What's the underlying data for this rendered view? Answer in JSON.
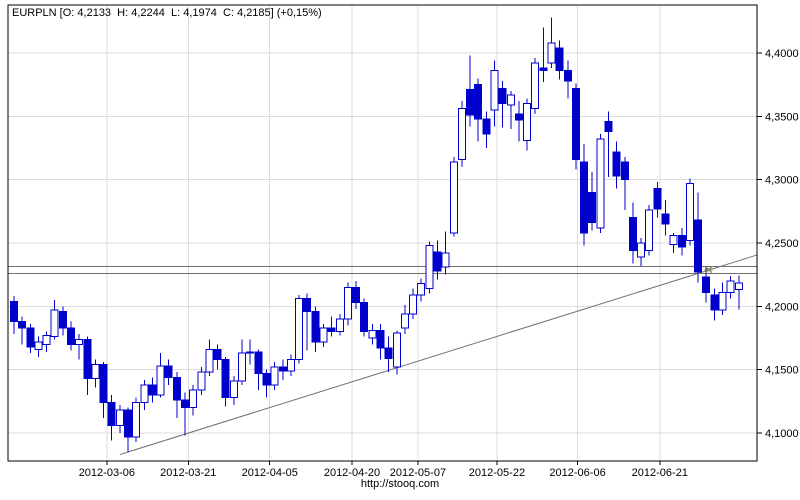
{
  "header": {
    "symbol": "EURPLN",
    "open": "4,2133",
    "high": "4,2244",
    "low": "4,1974",
    "close": "4,2185",
    "change": "(+0,15%)",
    "quote_line": "EURPLN [O: 4,2133  H: 4,2244  L: 4,1974  C: 4,2185] (+0,15%)"
  },
  "footer": {
    "url": "http://stooq.com"
  },
  "chart_data": {
    "type": "candlestick",
    "title": "EURPLN daily candlestick chart",
    "symbol": "EURPLN",
    "grid": true,
    "legend": null,
    "y_axis": {
      "side": "right",
      "min": 4.0779,
      "max": 4.4379,
      "ticks": [
        {
          "value": 4.4,
          "label": "4,4000"
        },
        {
          "value": 4.35,
          "label": "4,3500"
        },
        {
          "value": 4.3,
          "label": "4,3000"
        },
        {
          "value": 4.25,
          "label": "4,2500"
        },
        {
          "value": 4.2,
          "label": "4,2000"
        },
        {
          "value": 4.15,
          "label": "4,1500"
        },
        {
          "value": 4.1,
          "label": "4,1000"
        }
      ]
    },
    "x_axis": {
      "ticks": [
        {
          "index": 11.4,
          "label": "2012-03-06"
        },
        {
          "index": 21.4,
          "label": "2012-03-21"
        },
        {
          "index": 31.4,
          "label": "2012-04-05"
        },
        {
          "index": 41.5,
          "label": "2012-04-20"
        },
        {
          "index": 49.6,
          "label": "2012-05-07"
        },
        {
          "index": 59.3,
          "label": "2012-05-22"
        },
        {
          "index": 69.2,
          "label": "2012-06-06"
        },
        {
          "index": 79.3,
          "label": "2012-06-21"
        }
      ]
    },
    "last_quote": {
      "open": 4.2133,
      "high": 4.2244,
      "low": 4.1974,
      "close": 4.2185,
      "change_pct": 0.15
    },
    "candles": [
      [
        4.204,
        4.208,
        4.178,
        4.188
      ],
      [
        4.188,
        4.192,
        4.17,
        4.183
      ],
      [
        4.183,
        4.186,
        4.163,
        4.168
      ],
      [
        4.166,
        4.176,
        4.16,
        4.172
      ],
      [
        4.17,
        4.18,
        4.164,
        4.177
      ],
      [
        4.176,
        4.205,
        4.174,
        4.197
      ],
      [
        4.196,
        4.2,
        4.177,
        4.183
      ],
      [
        4.183,
        4.188,
        4.165,
        4.17
      ],
      [
        4.17,
        4.178,
        4.158,
        4.174
      ],
      [
        4.174,
        4.176,
        4.13,
        4.143
      ],
      [
        4.143,
        4.158,
        4.136,
        4.154
      ],
      [
        4.154,
        4.156,
        4.112,
        4.124
      ],
      [
        4.124,
        4.13,
        4.094,
        4.106
      ],
      [
        4.106,
        4.122,
        4.1,
        4.118
      ],
      [
        4.118,
        4.12,
        4.085,
        4.097
      ],
      [
        4.097,
        4.128,
        4.093,
        4.124
      ],
      [
        4.124,
        4.142,
        4.118,
        4.138
      ],
      [
        4.138,
        4.144,
        4.124,
        4.13
      ],
      [
        4.13,
        4.163,
        4.128,
        4.153
      ],
      [
        4.153,
        4.158,
        4.138,
        4.144
      ],
      [
        4.144,
        4.148,
        4.112,
        4.126
      ],
      [
        4.126,
        4.132,
        4.098,
        4.12
      ],
      [
        4.12,
        4.138,
        4.114,
        4.134
      ],
      [
        4.134,
        4.152,
        4.13,
        4.148
      ],
      [
        4.148,
        4.174,
        4.145,
        4.166
      ],
      [
        4.166,
        4.17,
        4.15,
        4.158
      ],
      [
        4.158,
        4.16,
        4.121,
        4.128
      ],
      [
        4.128,
        4.145,
        4.122,
        4.141
      ],
      [
        4.141,
        4.174,
        4.138,
        4.163
      ],
      [
        4.163,
        4.174,
        4.154,
        4.164
      ],
      [
        4.164,
        4.166,
        4.134,
        4.147
      ],
      [
        4.147,
        4.15,
        4.128,
        4.138
      ],
      [
        4.138,
        4.156,
        4.134,
        4.152
      ],
      [
        4.152,
        4.158,
        4.142,
        4.149
      ],
      [
        4.149,
        4.162,
        4.145,
        4.158
      ],
      [
        4.158,
        4.209,
        4.155,
        4.206
      ],
      [
        4.206,
        4.21,
        4.165,
        4.196
      ],
      [
        4.196,
        4.2,
        4.164,
        4.172
      ],
      [
        4.172,
        4.186,
        4.168,
        4.183
      ],
      [
        4.183,
        4.192,
        4.176,
        4.18
      ],
      [
        4.18,
        4.194,
        4.177,
        4.19
      ],
      [
        4.19,
        4.219,
        4.185,
        4.215
      ],
      [
        4.215,
        4.22,
        4.198,
        4.203
      ],
      [
        4.203,
        4.206,
        4.176,
        4.18
      ],
      [
        4.175,
        4.186,
        4.17,
        4.181
      ],
      [
        4.181,
        4.186,
        4.158,
        4.167
      ],
      [
        4.167,
        4.176,
        4.148,
        4.159
      ],
      [
        4.152,
        4.181,
        4.146,
        4.179
      ],
      [
        4.183,
        4.201,
        4.178,
        4.194
      ],
      [
        4.194,
        4.214,
        4.19,
        4.209
      ],
      [
        4.209,
        4.222,
        4.204,
        4.218
      ],
      [
        4.214,
        4.251,
        4.21,
        4.248
      ],
      [
        4.243,
        4.252,
        4.221,
        4.228
      ],
      [
        4.231,
        4.259,
        4.225,
        4.242
      ],
      [
        4.258,
        4.318,
        4.255,
        4.314
      ],
      [
        4.316,
        4.362,
        4.31,
        4.356
      ],
      [
        4.371,
        4.398,
        4.342,
        4.351
      ],
      [
        4.375,
        4.38,
        4.33,
        4.348
      ],
      [
        4.348,
        4.354,
        4.325,
        4.336
      ],
      [
        4.355,
        4.394,
        4.342,
        4.386
      ],
      [
        4.372,
        4.378,
        4.341,
        4.36
      ],
      [
        4.359,
        4.37,
        4.34,
        4.367
      ],
      [
        4.352,
        4.362,
        4.33,
        4.347
      ],
      [
        4.331,
        4.364,
        4.323,
        4.36
      ],
      [
        4.356,
        4.396,
        4.352,
        4.392
      ],
      [
        4.388,
        4.42,
        4.377,
        4.386
      ],
      [
        4.392,
        4.428,
        4.388,
        4.408
      ],
      [
        4.404,
        4.41,
        4.379,
        4.386
      ],
      [
        4.386,
        4.394,
        4.364,
        4.378
      ],
      [
        4.372,
        4.376,
        4.308,
        4.316
      ],
      [
        4.314,
        4.328,
        4.248,
        4.258
      ],
      [
        4.29,
        4.306,
        4.26,
        4.266
      ],
      [
        4.262,
        4.336,
        4.258,
        4.332
      ],
      [
        4.346,
        4.354,
        4.302,
        4.338
      ],
      [
        4.322,
        4.33,
        4.293,
        4.303
      ],
      [
        4.314,
        4.318,
        4.276,
        4.3
      ],
      [
        4.27,
        4.282,
        4.234,
        4.244
      ],
      [
        4.239,
        4.254,
        4.232,
        4.25
      ],
      [
        4.244,
        4.28,
        4.24,
        4.276
      ],
      [
        4.293,
        4.298,
        4.27,
        4.277
      ],
      [
        4.273,
        4.284,
        4.256,
        4.265
      ],
      [
        4.249,
        4.258,
        4.242,
        4.256
      ],
      [
        4.256,
        4.262,
        4.24,
        4.247
      ],
      [
        4.252,
        4.301,
        4.248,
        4.297
      ],
      [
        4.268,
        4.29,
        4.219,
        4.227
      ],
      [
        4.223,
        4.232,
        4.203,
        4.211
      ],
      [
        4.209,
        4.214,
        4.189,
        4.197
      ],
      [
        4.197,
        4.219,
        4.193,
        4.211
      ],
      [
        4.211,
        4.224,
        4.206,
        4.22
      ],
      [
        4.2133,
        4.2244,
        4.1974,
        4.2185
      ]
    ],
    "levels": [
      {
        "price": 4.2313
      },
      {
        "price": 4.2261
      }
    ],
    "trendline": {
      "from": {
        "index": 13.0,
        "price": 4.083
      },
      "to": {
        "index": 91.2,
        "price": 4.2405
      }
    },
    "marker": {
      "index": 85.3,
      "price": 4.229,
      "glyph": "asterisk"
    },
    "colors": {
      "candle": "#0000cc",
      "up_fill": "#ffffff",
      "grid": "#dcdcdc",
      "axis": "#000000",
      "level_line": "#707070",
      "trend_line": "#707070",
      "marker": "#8a8a5e",
      "background": "#ffffff"
    }
  }
}
